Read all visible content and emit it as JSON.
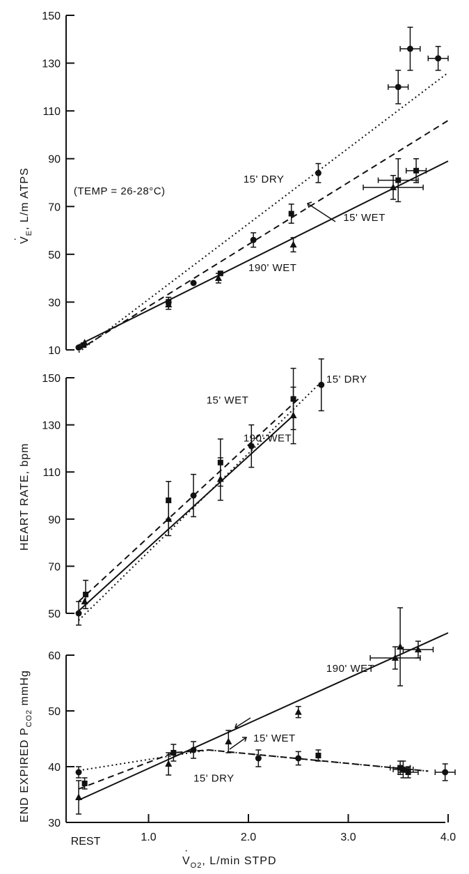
{
  "x_axis": {
    "title_v": "V",
    "title_sub": "O2",
    "title_rest": ", L/min STPD",
    "ticks": [
      {
        "label": "REST",
        "value": 0.3
      },
      {
        "label": "1.0",
        "value": 1.0
      },
      {
        "label": "2.0",
        "value": 2.0
      },
      {
        "label": "3.0",
        "value": 3.0
      },
      {
        "label": "4.0",
        "value": 4.0
      }
    ]
  },
  "chart_data": [
    {
      "type": "scatter",
      "ylabel_v": "V",
      "ylabel_sub": "E",
      "ylabel_rest": ", L/m ATPS",
      "ylim": [
        10,
        150
      ],
      "xlim": [
        0,
        4
      ],
      "yticks": [
        10,
        30,
        50,
        70,
        90,
        110,
        130,
        150
      ],
      "annotations": [
        {
          "text": "(TEMP = 26-28°C)",
          "x": 0.25,
          "y": 75
        },
        {
          "text": "15' DRY",
          "x": 1.95,
          "y": 80
        },
        {
          "text": "15' WET",
          "x": 2.95,
          "y": 64
        },
        {
          "text": "190' WET",
          "x": 2.0,
          "y": 43
        }
      ],
      "series": [
        {
          "marker": "circle",
          "fit": "dotted",
          "fit_line": [
            [
              0.3,
              9
            ],
            [
              4.0,
              126
            ]
          ],
          "points": [
            {
              "x": 0.3,
              "y": 11,
              "yerr": 0
            },
            {
              "x": 1.2,
              "y": 30,
              "yerr": 2
            },
            {
              "x": 1.45,
              "y": 38,
              "yerr": 0
            },
            {
              "x": 2.05,
              "y": 56,
              "yerr": 3
            },
            {
              "x": 2.7,
              "y": 84,
              "yerr": 4
            },
            {
              "x": 3.5,
              "y": 120,
              "yerr": 7,
              "xerr": 0.1
            },
            {
              "x": 3.62,
              "y": 136,
              "yerr": 9,
              "xerr": 0.1
            },
            {
              "x": 3.9,
              "y": 132,
              "yerr": 5,
              "xerr": 0.1
            }
          ]
        },
        {
          "marker": "square",
          "fit": "dashed",
          "fit_line": [
            [
              0.3,
              10
            ],
            [
              4.0,
              106
            ]
          ],
          "points": [
            {
              "x": 0.35,
              "y": 12,
              "yerr": 0
            },
            {
              "x": 1.2,
              "y": 30,
              "yerr": 2
            },
            {
              "x": 1.72,
              "y": 42,
              "yerr": 0
            },
            {
              "x": 2.43,
              "y": 67,
              "yerr": 4
            },
            {
              "x": 3.5,
              "y": 81,
              "yerr": 9,
              "xerr": 0.2
            },
            {
              "x": 3.68,
              "y": 85,
              "yerr": 5,
              "xerr": 0.1
            }
          ]
        },
        {
          "marker": "triangle",
          "fit": "solid",
          "fit_line": [
            [
              0.3,
              12
            ],
            [
              4.0,
              89
            ]
          ],
          "points": [
            {
              "x": 0.36,
              "y": 13,
              "yerr": 0
            },
            {
              "x": 1.2,
              "y": 29,
              "yerr": 2
            },
            {
              "x": 1.7,
              "y": 40,
              "yerr": 2
            },
            {
              "x": 2.45,
              "y": 54,
              "yerr": 3
            },
            {
              "x": 3.45,
              "y": 78,
              "yerr": 5,
              "xerr": 0.3
            }
          ]
        }
      ]
    },
    {
      "type": "scatter",
      "ylabel": "HEART RATE, bpm",
      "ylim": [
        50,
        150
      ],
      "xlim": [
        0,
        4
      ],
      "yticks": [
        50,
        70,
        90,
        110,
        130,
        150
      ],
      "annotations": [
        {
          "text": "15' DRY",
          "x": 2.78,
          "y": 148
        },
        {
          "text": "15' WET",
          "x": 1.58,
          "y": 139
        },
        {
          "text": "190' WET",
          "x": 1.95,
          "y": 123
        }
      ],
      "series": [
        {
          "marker": "circle",
          "fit": "dotted",
          "fit_line": [
            [
              0.3,
              47
            ],
            [
              2.7,
              147
            ]
          ],
          "points": [
            {
              "x": 0.3,
              "y": 50,
              "yerr": 5
            },
            {
              "x": 1.45,
              "y": 100,
              "yerr": 9
            },
            {
              "x": 2.03,
              "y": 121,
              "yerr": 9
            },
            {
              "x": 2.73,
              "y": 147,
              "yerr": 11
            }
          ]
        },
        {
          "marker": "square",
          "fit": "dashed",
          "fit_line": [
            [
              0.3,
              55
            ],
            [
              2.5,
              141
            ]
          ],
          "points": [
            {
              "x": 0.37,
              "y": 58,
              "yerr": 6
            },
            {
              "x": 1.2,
              "y": 98,
              "yerr": 8
            },
            {
              "x": 1.72,
              "y": 114,
              "yerr": 10
            },
            {
              "x": 2.45,
              "y": 141,
              "yerr": 13
            }
          ]
        },
        {
          "marker": "triangle",
          "fit": "solid",
          "fit_line": [
            [
              0.3,
              51
            ],
            [
              2.45,
              134
            ]
          ],
          "points": [
            {
              "x": 0.36,
              "y": 55,
              "yerr": 0
            },
            {
              "x": 1.2,
              "y": 90,
              "yerr": 7
            },
            {
              "x": 1.72,
              "y": 107,
              "yerr": 9
            },
            {
              "x": 2.45,
              "y": 134,
              "yerr": 12
            }
          ]
        }
      ]
    },
    {
      "type": "scatter",
      "ylabel": "END EXPIRED P",
      "ylabel_sub": "CO2",
      "ylabel_unit": "mmHg",
      "ylim": [
        30,
        60
      ],
      "xlim": [
        0,
        4
      ],
      "yticks": [
        30,
        40,
        50,
        60
      ],
      "annotations": [
        {
          "text": "190' WET",
          "x": 2.78,
          "y": 57
        },
        {
          "text": "15' WET",
          "x": 2.05,
          "y": 44.5
        },
        {
          "text": "15' DRY",
          "x": 1.45,
          "y": 37.3
        }
      ],
      "series": [
        {
          "marker": "circle",
          "fit": "dotted",
          "fit_line": [
            [
              0.3,
              39.3
            ],
            [
              1.6,
              43
            ],
            [
              3.8,
              39.2
            ]
          ],
          "points": [
            {
              "x": 0.3,
              "y": 39,
              "yerr": 1
            },
            {
              "x": 1.45,
              "y": 43,
              "yerr": 1.5
            },
            {
              "x": 2.1,
              "y": 41.5,
              "yerr": 1.5
            },
            {
              "x": 2.5,
              "y": 41.5,
              "yerr": 1.2
            },
            {
              "x": 3.55,
              "y": 39.5,
              "yerr": 1.5,
              "xerr": 0.1
            },
            {
              "x": 3.97,
              "y": 39,
              "yerr": 1.5,
              "xerr": 0.1
            }
          ]
        },
        {
          "marker": "square",
          "fit": "dashed",
          "fit_line": [
            [
              0.3,
              36
            ],
            [
              1.25,
              42.5
            ],
            [
              1.6,
              43
            ],
            [
              3.8,
              39.2
            ]
          ],
          "points": [
            {
              "x": 0.36,
              "y": 37,
              "yerr": 1
            },
            {
              "x": 1.25,
              "y": 42.5,
              "yerr": 1.5
            },
            {
              "x": 2.7,
              "y": 42,
              "yerr": 1
            },
            {
              "x": 3.52,
              "y": 39.8,
              "yerr": 1.2,
              "xerr": 0.1
            },
            {
              "x": 3.6,
              "y": 39,
              "yerr": 1,
              "xerr": 0.1
            }
          ]
        },
        {
          "marker": "triangle",
          "fit": "solid",
          "fit_line": [
            [
              0.3,
              34
            ],
            [
              4.0,
              64
            ]
          ],
          "points": [
            {
              "x": 0.3,
              "y": 34.5,
              "yerr": 3
            },
            {
              "x": 1.2,
              "y": 40.5,
              "yerr": 2
            },
            {
              "x": 1.8,
              "y": 44.5,
              "yerr": 2
            },
            {
              "x": 2.5,
              "y": 49.8,
              "yerr": 1
            },
            {
              "x": 3.47,
              "y": 59.5,
              "yerr": 2,
              "xerr": 0.25
            },
            {
              "x": 3.52,
              "y": 61.5,
              "yerr": 7
            },
            {
              "x": 3.7,
              "y": 61,
              "yerr": 1.5,
              "xerr": 0.15
            }
          ]
        }
      ]
    }
  ]
}
